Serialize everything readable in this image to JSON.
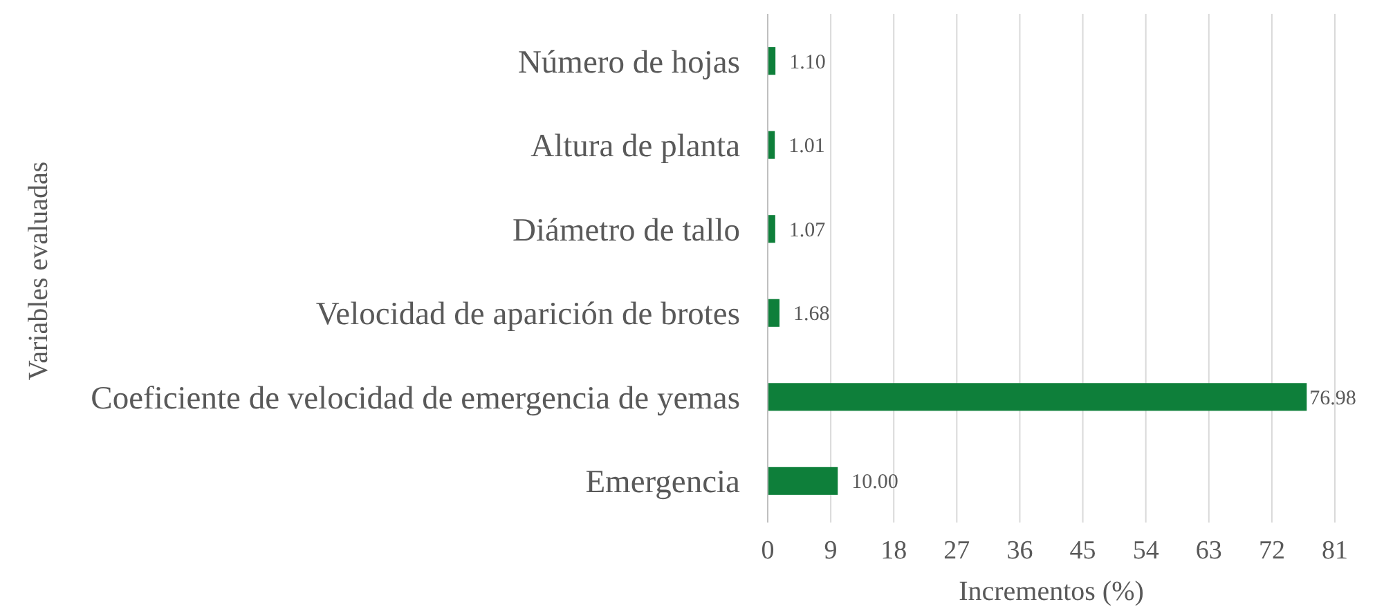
{
  "chart_data": {
    "type": "bar",
    "orientation": "horizontal",
    "xlabel": "Incrementos (%)",
    "ylabel": "Variables evaluadas",
    "categories": [
      "Número de hojas",
      "Altura de planta",
      "Diámetro de tallo",
      "Velocidad de aparición de brotes",
      "Coeficiente de velocidad de emergencia de yemas",
      "Emergencia"
    ],
    "values": [
      1.1,
      1.01,
      1.07,
      1.68,
      76.98,
      10.0
    ],
    "value_labels": [
      "1.10",
      "1.01",
      "1.07",
      "1.68",
      "76.98",
      "10.00"
    ],
    "color": "#0e7f3a",
    "xlim": [
      0,
      81
    ],
    "xticks": [
      0,
      9,
      18,
      27,
      36,
      45,
      54,
      63,
      72,
      81
    ],
    "grid": "x"
  }
}
